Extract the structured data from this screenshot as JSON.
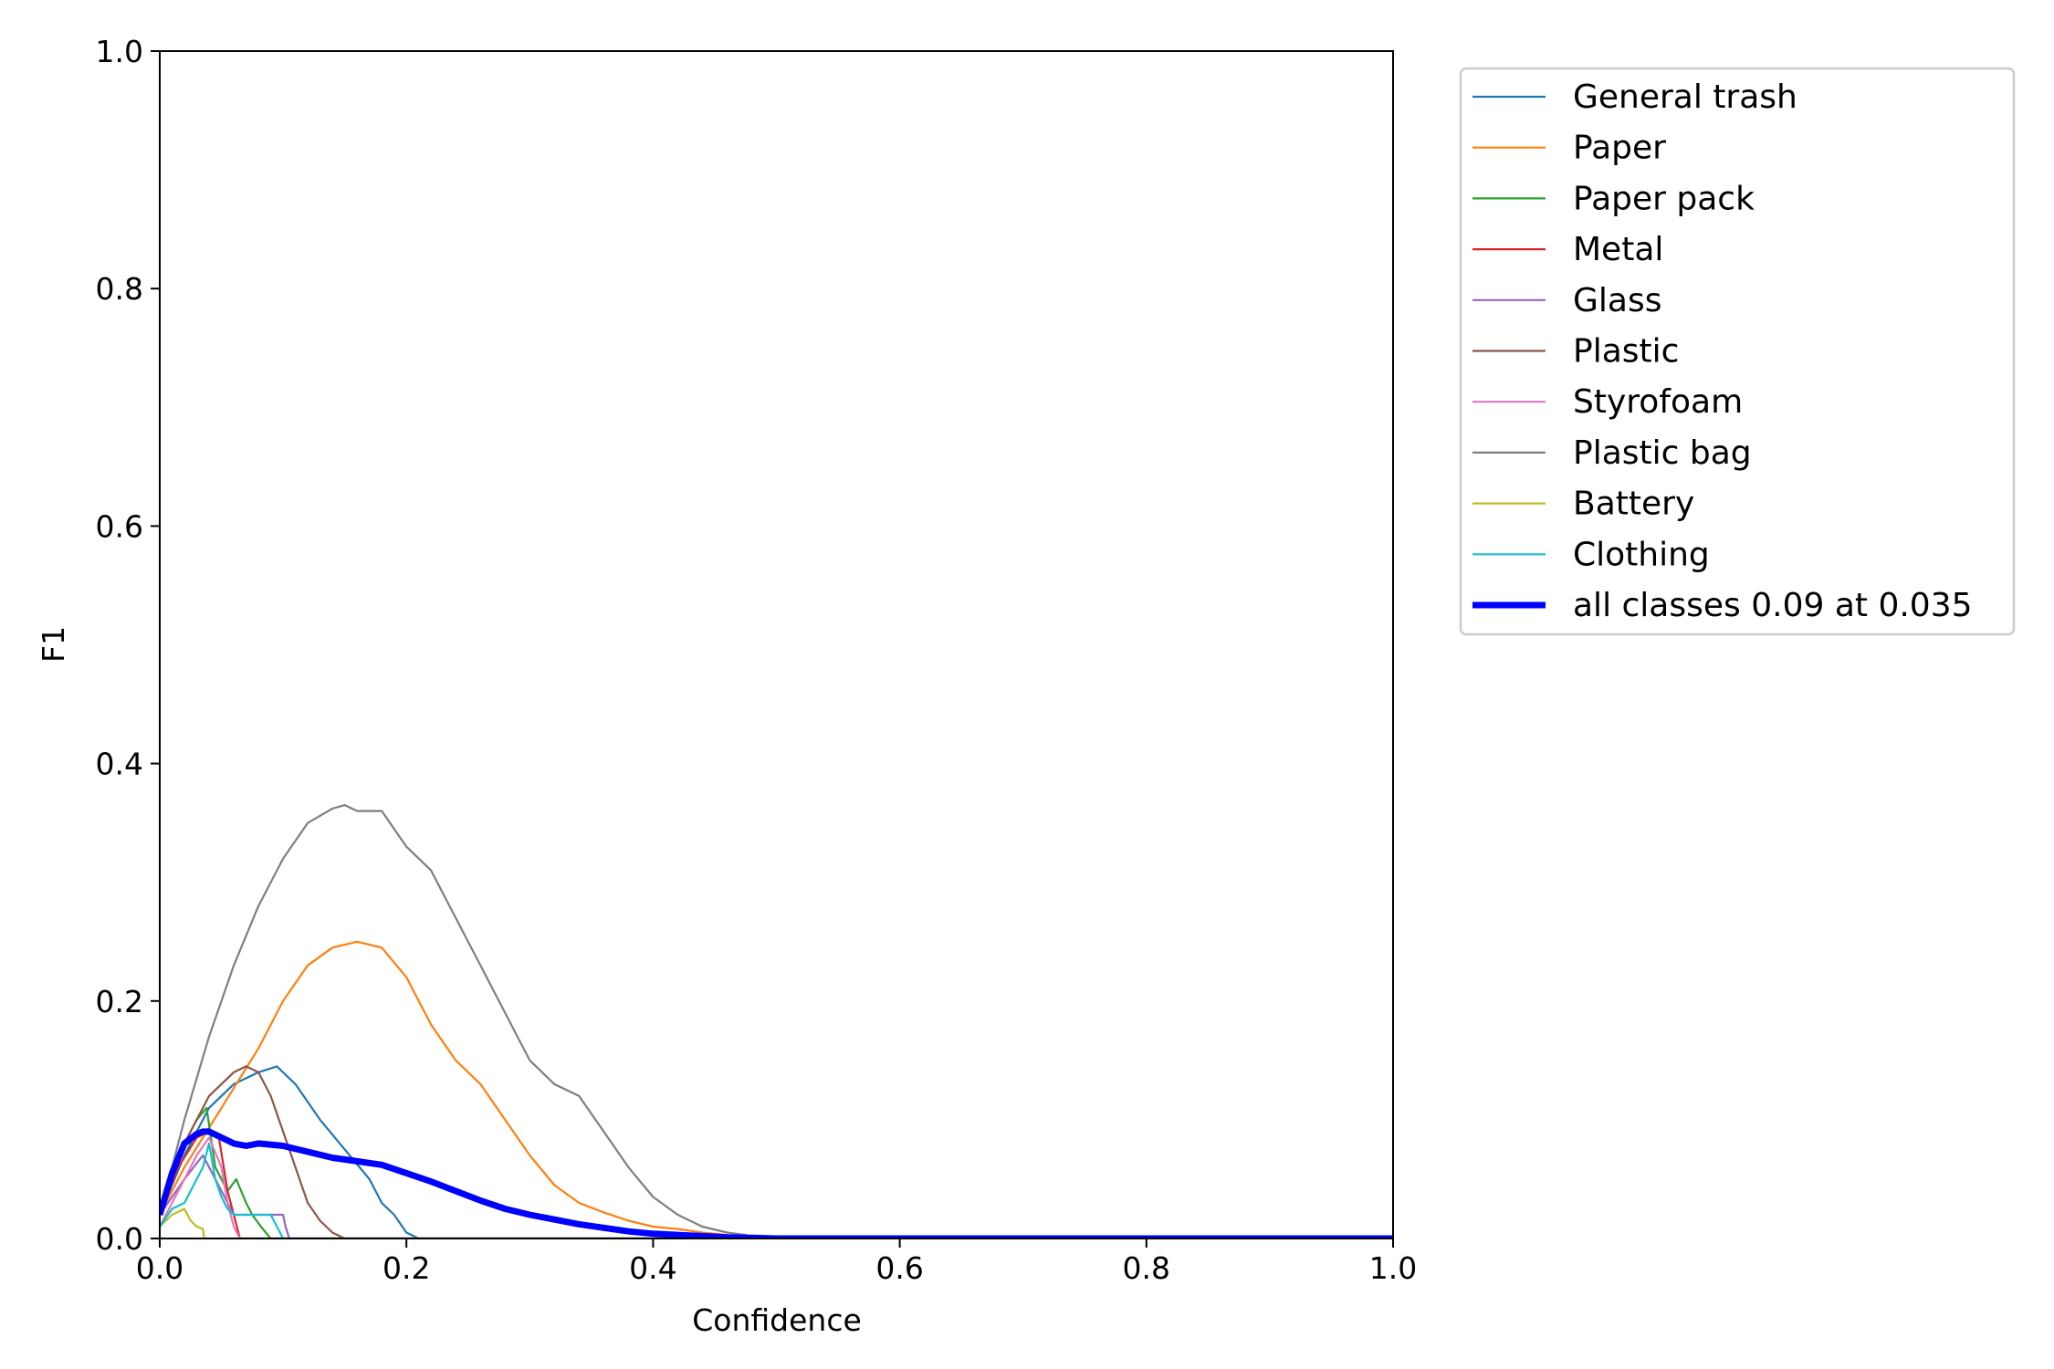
{
  "chart_data": {
    "type": "line",
    "title": "",
    "xlabel": "Confidence",
    "ylabel": "F1",
    "xlim": [
      0.0,
      1.0
    ],
    "ylim": [
      0.0,
      1.0
    ],
    "xticks": [
      "0.0",
      "0.2",
      "0.4",
      "0.6",
      "0.8",
      "1.0"
    ],
    "yticks": [
      "0.0",
      "0.2",
      "0.4",
      "0.6",
      "0.8",
      "1.0"
    ],
    "grid": false,
    "legend_position": "outside-top-right",
    "series": [
      {
        "name": "General trash",
        "color": "#1f77b4",
        "width": "thin",
        "x": [
          0.0,
          0.02,
          0.04,
          0.06,
          0.08,
          0.095,
          0.11,
          0.13,
          0.15,
          0.17,
          0.18,
          0.19,
          0.2,
          0.21,
          1.0
        ],
        "y": [
          0.02,
          0.07,
          0.11,
          0.13,
          0.14,
          0.145,
          0.13,
          0.1,
          0.075,
          0.05,
          0.03,
          0.02,
          0.005,
          0.0,
          0.0
        ]
      },
      {
        "name": "Paper",
        "color": "#ff7f0e",
        "width": "thin",
        "x": [
          0.0,
          0.02,
          0.05,
          0.08,
          0.1,
          0.12,
          0.14,
          0.16,
          0.18,
          0.2,
          0.22,
          0.24,
          0.26,
          0.28,
          0.3,
          0.32,
          0.34,
          0.36,
          0.38,
          0.4,
          0.42,
          0.44,
          0.46,
          0.48,
          1.0
        ],
        "y": [
          0.02,
          0.06,
          0.11,
          0.16,
          0.2,
          0.23,
          0.245,
          0.25,
          0.245,
          0.22,
          0.18,
          0.15,
          0.13,
          0.1,
          0.07,
          0.045,
          0.03,
          0.022,
          0.015,
          0.01,
          0.008,
          0.005,
          0.003,
          0.0,
          0.0
        ]
      },
      {
        "name": "Paper pack",
        "color": "#2ca02c",
        "width": "thin",
        "x": [
          0.0,
          0.015,
          0.03,
          0.038,
          0.045,
          0.055,
          0.062,
          0.07,
          0.075,
          0.082,
          0.09,
          1.0
        ],
        "y": [
          0.02,
          0.07,
          0.1,
          0.11,
          0.06,
          0.04,
          0.05,
          0.03,
          0.02,
          0.01,
          0.0,
          0.0
        ]
      },
      {
        "name": "Metal",
        "color": "#d62728",
        "width": "thin",
        "x": [
          0.0,
          0.015,
          0.03,
          0.04,
          0.048,
          0.055,
          0.06,
          0.065,
          1.0
        ],
        "y": [
          0.02,
          0.06,
          0.085,
          0.09,
          0.085,
          0.04,
          0.02,
          0.0,
          0.0
        ]
      },
      {
        "name": "Glass",
        "color": "#9467bd",
        "width": "thin",
        "x": [
          0.0,
          0.02,
          0.035,
          0.05,
          0.06,
          0.07,
          0.085,
          0.1,
          0.102,
          0.105,
          1.0
        ],
        "y": [
          0.02,
          0.05,
          0.07,
          0.04,
          0.02,
          0.02,
          0.02,
          0.02,
          0.01,
          0.0,
          0.0
        ]
      },
      {
        "name": "Plastic",
        "color": "#8c564b",
        "width": "thin",
        "x": [
          0.0,
          0.02,
          0.04,
          0.06,
          0.07,
          0.08,
          0.09,
          0.1,
          0.11,
          0.12,
          0.13,
          0.14,
          0.15,
          1.0
        ],
        "y": [
          0.02,
          0.08,
          0.12,
          0.14,
          0.145,
          0.14,
          0.12,
          0.09,
          0.06,
          0.03,
          0.015,
          0.005,
          0.0,
          0.0
        ]
      },
      {
        "name": "Styrofoam",
        "color": "#e377c2",
        "width": "thin",
        "x": [
          0.0,
          0.015,
          0.03,
          0.04,
          0.05,
          0.055,
          0.06,
          0.065,
          1.0
        ],
        "y": [
          0.01,
          0.04,
          0.07,
          0.085,
          0.06,
          0.03,
          0.01,
          0.0,
          0.0
        ]
      },
      {
        "name": "Plastic bag",
        "color": "#7f7f7f",
        "width": "thin",
        "x": [
          0.0,
          0.02,
          0.04,
          0.06,
          0.08,
          0.1,
          0.12,
          0.14,
          0.15,
          0.16,
          0.18,
          0.2,
          0.22,
          0.24,
          0.26,
          0.28,
          0.3,
          0.32,
          0.34,
          0.36,
          0.38,
          0.4,
          0.42,
          0.44,
          0.46,
          0.475,
          0.48,
          1.0
        ],
        "y": [
          0.02,
          0.1,
          0.17,
          0.23,
          0.28,
          0.32,
          0.35,
          0.362,
          0.365,
          0.36,
          0.36,
          0.33,
          0.31,
          0.27,
          0.23,
          0.19,
          0.15,
          0.13,
          0.12,
          0.09,
          0.06,
          0.035,
          0.02,
          0.01,
          0.005,
          0.003,
          0.0,
          0.0
        ]
      },
      {
        "name": "Battery",
        "color": "#bcbd22",
        "width": "thin",
        "x": [
          0.0,
          0.01,
          0.02,
          0.025,
          0.03,
          0.035,
          0.036,
          1.0
        ],
        "y": [
          0.01,
          0.02,
          0.025,
          0.015,
          0.01,
          0.008,
          0.0,
          0.0
        ]
      },
      {
        "name": "Clothing",
        "color": "#17becf",
        "width": "thin",
        "x": [
          0.0,
          0.01,
          0.02,
          0.03,
          0.035,
          0.04,
          0.045,
          0.05,
          0.055,
          0.06,
          0.065,
          0.07,
          0.08,
          0.09,
          0.1,
          1.0
        ],
        "y": [
          0.01,
          0.025,
          0.03,
          0.05,
          0.06,
          0.08,
          0.05,
          0.035,
          0.025,
          0.02,
          0.02,
          0.02,
          0.02,
          0.02,
          0.0,
          0.0
        ]
      },
      {
        "name": "all classes 0.09 at 0.035",
        "color": "#0000ff",
        "width": "thick",
        "x": [
          0.0,
          0.01,
          0.02,
          0.03,
          0.035,
          0.04,
          0.05,
          0.06,
          0.07,
          0.08,
          0.1,
          0.12,
          0.14,
          0.16,
          0.18,
          0.2,
          0.22,
          0.24,
          0.26,
          0.28,
          0.3,
          0.32,
          0.34,
          0.36,
          0.38,
          0.4,
          0.42,
          0.44,
          0.46,
          0.48,
          0.5,
          1.0
        ],
        "y": [
          0.02,
          0.055,
          0.08,
          0.088,
          0.09,
          0.09,
          0.085,
          0.08,
          0.078,
          0.08,
          0.078,
          0.073,
          0.068,
          0.065,
          0.062,
          0.055,
          0.048,
          0.04,
          0.032,
          0.025,
          0.02,
          0.016,
          0.012,
          0.009,
          0.006,
          0.004,
          0.003,
          0.002,
          0.001,
          0.0005,
          0.0,
          0.0
        ]
      }
    ]
  }
}
